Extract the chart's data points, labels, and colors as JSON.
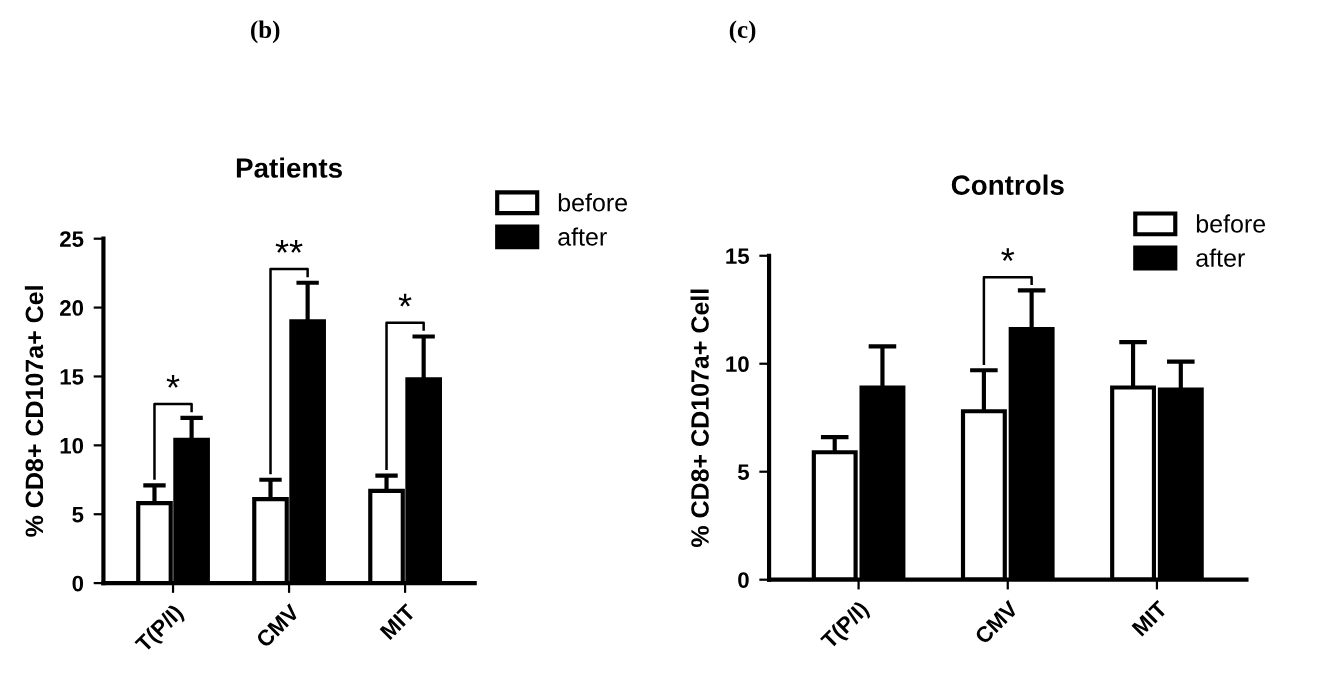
{
  "chart_data": [
    {
      "type": "bar",
      "title": "Patients",
      "ylabel": "% CD8+ CD107a+ Cel",
      "categories": [
        "T(P/I)",
        "CMV",
        "MIT"
      ],
      "ylim": [
        0,
        25
      ],
      "yticks": [
        0,
        5,
        10,
        15,
        20,
        25
      ],
      "grid": false,
      "legend": "top right",
      "annotations": [
        "(b)",
        {
          "text": "*",
          "x": "T(P/I)",
          "y": 10.4
        },
        {
          "text": "**",
          "x": "CMV",
          "y": 19.0
        },
        {
          "text": "*",
          "x": "MIT",
          "y": 14.8
        }
      ],
      "series": [
        {
          "name": "before",
          "color": "#ffffff",
          "values": [
            5.8,
            6.1,
            6.7
          ],
          "errors": [
            1.3,
            1.4,
            1.1
          ]
        },
        {
          "name": "after",
          "color": "#000000",
          "values": [
            10.4,
            19.0,
            14.8
          ],
          "errors": [
            1.6,
            2.8,
            3.1
          ]
        }
      ]
    },
    {
      "type": "bar",
      "title": "Controls",
      "ylabel": "% CD8+ CD107a+ Cell",
      "categories": [
        "T(P/I)",
        "CMV",
        "MIT"
      ],
      "ylim": [
        0,
        15
      ],
      "yticks": [
        0,
        5,
        10,
        15
      ],
      "grid": false,
      "legend": "top right",
      "annotations": [
        "(c)",
        {
          "text": "*",
          "x": "CMV",
          "y": 11.6
        }
      ],
      "series": [
        {
          "name": "before",
          "color": "#ffffff",
          "values": [
            5.9,
            7.8,
            8.9
          ],
          "errors": [
            0.7,
            1.9,
            2.1
          ]
        },
        {
          "name": "after",
          "color": "#000000",
          "values": [
            8.9,
            11.6,
            8.8
          ],
          "errors": [
            1.9,
            1.8,
            1.3
          ]
        }
      ]
    }
  ]
}
